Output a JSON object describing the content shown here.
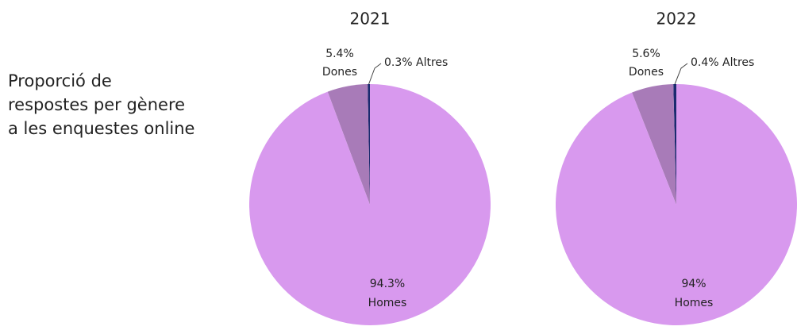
{
  "caption": [
    "Proporció de",
    "respostes per gènere",
    "a les enquestes online"
  ],
  "chart_data": [
    {
      "type": "pie",
      "title": "2021",
      "categories": [
        "Homes",
        "Dones",
        "Altres"
      ],
      "values": [
        94.3,
        5.4,
        0.3
      ],
      "value_labels": [
        "94.3%",
        "5.4%",
        "0.3%"
      ],
      "colors": [
        "#d899ee",
        "#a87bb8",
        "#1a2a6e"
      ]
    },
    {
      "type": "pie",
      "title": "2022",
      "categories": [
        "Homes",
        "Dones",
        "Altres"
      ],
      "values": [
        94,
        5.6,
        0.4
      ],
      "value_labels": [
        "94%",
        "5.6%",
        "0.4%"
      ],
      "colors": [
        "#d899ee",
        "#a87bb8",
        "#1a2a6e"
      ]
    }
  ]
}
